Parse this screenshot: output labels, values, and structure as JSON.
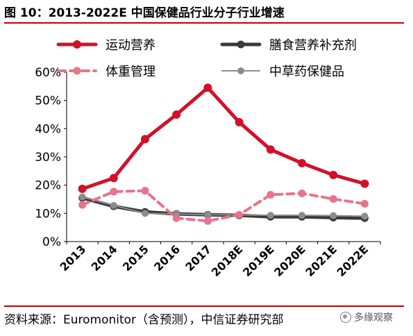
{
  "title": "图 10：2013-2022E 中国保健品行业分子行业增速",
  "source": "资料来源：Euromonitor（含预测），中信证券研究部",
  "watermark": "多缘观察",
  "chart_data": {
    "type": "line",
    "categories": [
      "2013",
      "2014",
      "2015",
      "2016",
      "2017",
      "2018E",
      "2019E",
      "2020E",
      "2021E",
      "2022E"
    ],
    "ylim": [
      0,
      60
    ],
    "yticks": [
      "0%",
      "10%",
      "20%",
      "30%",
      "40%",
      "50%",
      "60%"
    ],
    "grid": false,
    "legend_position": "top",
    "series": [
      {
        "name": "运动营养",
        "color": "#d2102a",
        "dash": "solid",
        "values": [
          18.7,
          22.5,
          36.3,
          45.0,
          54.5,
          42.3,
          32.6,
          27.8,
          23.6,
          20.5
        ]
      },
      {
        "name": "膳食营养补充剂",
        "color": "#3a3a3a",
        "dash": "solid",
        "values": [
          15.5,
          12.5,
          10.5,
          9.8,
          9.5,
          9.3,
          8.8,
          8.8,
          8.5,
          8.3
        ]
      },
      {
        "name": "体重管理",
        "color": "#e8738a",
        "dash": "dashed",
        "values": [
          13.0,
          17.7,
          18.0,
          8.3,
          7.3,
          9.5,
          16.6,
          17.1,
          15.1,
          13.4
        ]
      },
      {
        "name": "中草药保健品",
        "color": "#8c8c8c",
        "dash": "solid",
        "values": [
          15.8,
          12.8,
          10.0,
          9.8,
          9.5,
          9.5,
          9.3,
          9.3,
          9.2,
          9.0
        ]
      }
    ]
  }
}
